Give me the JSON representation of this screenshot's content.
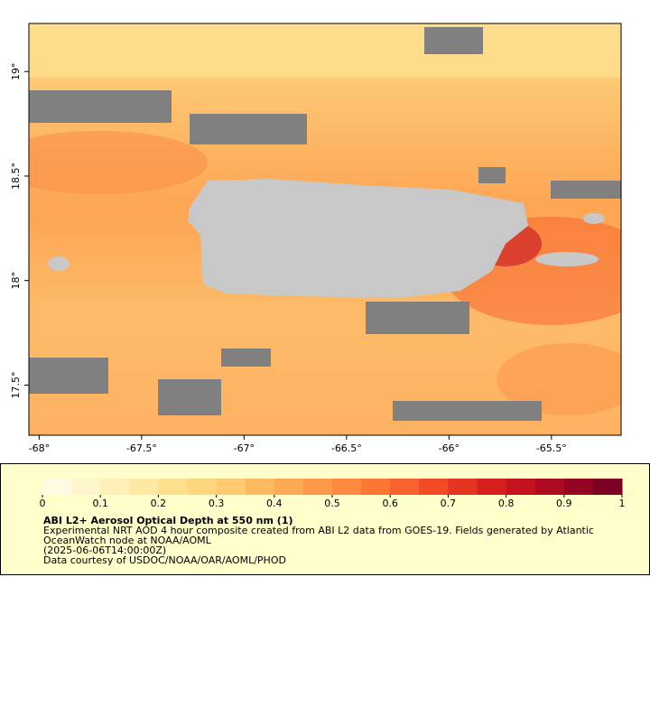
{
  "map": {
    "xlim": [
      -68.05,
      -65.16
    ],
    "ylim": [
      17.26,
      19.23
    ],
    "xticks": [
      {
        "value": -68,
        "label": "-68°"
      },
      {
        "value": -67.5,
        "label": "-67.5°"
      },
      {
        "value": -67,
        "label": "-67°"
      },
      {
        "value": -66.5,
        "label": "-66.5°"
      },
      {
        "value": -66,
        "label": "-66°"
      },
      {
        "value": -65.5,
        "label": "-65.5°"
      }
    ],
    "yticks": [
      {
        "value": 19,
        "label": "19°"
      },
      {
        "value": 18.5,
        "label": "18.5°"
      },
      {
        "value": 18,
        "label": "18°"
      },
      {
        "value": 17.5,
        "label": "17.5°"
      }
    ]
  },
  "colorbar": {
    "range": [
      0,
      1
    ],
    "ticks": [
      0,
      0.1,
      0.2,
      0.3,
      0.4,
      0.5,
      0.6,
      0.7,
      0.8,
      0.9,
      1
    ],
    "colors": [
      "#fffbe0",
      "#fff5cc",
      "#ffefb8",
      "#ffe8a3",
      "#ffe08f",
      "#fed680",
      "#fecb70",
      "#feba60",
      "#feaa52",
      "#fd9a47",
      "#fd8a3d",
      "#fc7635",
      "#f9612e",
      "#f24a27",
      "#e63422",
      "#d7201e",
      "#c4131f",
      "#ae0b22",
      "#950523",
      "#7d0022"
    ]
  },
  "legend_text": {
    "title": "ABI L2+ Aerosol Optical Depth at 550 nm (1)",
    "lines": [
      "Experimental NRT AOD 4 hour composite created from ABI L2 data from GOES-19. Fields generated by Atlantic",
      "OceanWatch node at NOAA/AOML",
      "(2025-06-06T14:00:00Z)",
      "Data courtesy of USDOC/NOAA/OAR/AOML/PHOD"
    ]
  }
}
